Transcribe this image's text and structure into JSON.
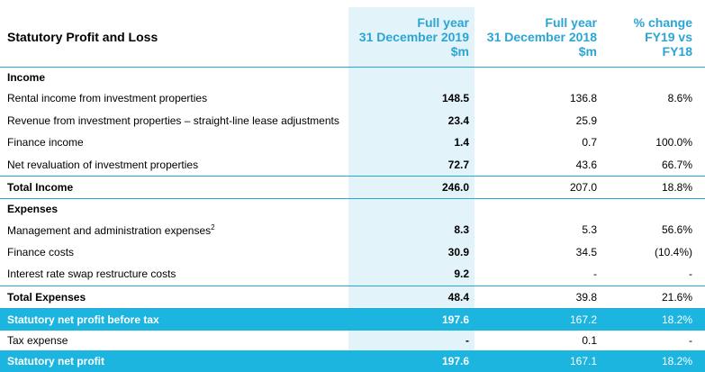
{
  "header": {
    "title": "Statutory Profit and Loss",
    "col_fy19": [
      "Full year",
      "31 December 2019",
      "$m"
    ],
    "col_fy18": [
      "Full year",
      "31 December 2018",
      "$m"
    ],
    "col_pct": [
      "% change",
      "FY19 vs",
      "FY18"
    ]
  },
  "colors": {
    "accent": "#2aa5d4",
    "highlight_row": "#1cb5e0",
    "fy19_band": "#e3f3fa"
  },
  "income": {
    "heading": "Income",
    "rows": [
      {
        "label": "Rental income from investment properties",
        "fy19": "148.5",
        "fy18": "136.8",
        "pct": "8.6%"
      },
      {
        "label": "Revenue from investment properties – straight-line lease adjustments",
        "fy19": "23.4",
        "fy18": "25.9",
        "pct": ""
      },
      {
        "label": "Finance income",
        "fy19": "1.4",
        "fy18": "0.7",
        "pct": "100.0%"
      },
      {
        "label": "Net revaluation of investment properties",
        "fy19": "72.7",
        "fy18": "43.6",
        "pct": "66.7%"
      }
    ],
    "total": {
      "label": "Total Income",
      "fy19": "246.0",
      "fy18": "207.0",
      "pct": "18.8%"
    }
  },
  "expenses": {
    "heading": "Expenses",
    "rows": [
      {
        "label": "Management and administration expenses",
        "sup": "2",
        "fy19": "8.3",
        "fy18": "5.3",
        "pct": "56.6%"
      },
      {
        "label": "Finance costs",
        "fy19": "30.9",
        "fy18": "34.5",
        "pct": "(10.4%)"
      },
      {
        "label": "Interest rate swap restructure costs",
        "fy19": "9.2",
        "fy18": "-",
        "pct": "-"
      }
    ],
    "total": {
      "label": "Total Expenses",
      "fy19": "48.4",
      "fy18": "39.8",
      "pct": "21.6%"
    }
  },
  "profit_before_tax": {
    "label": "Statutory net profit before tax",
    "fy19": "197.6",
    "fy18": "167.2",
    "pct": "18.2%"
  },
  "tax": {
    "label": "Tax expense",
    "fy19": "-",
    "fy18": "0.1",
    "pct": "-"
  },
  "net_profit": {
    "label": "Statutory net profit",
    "fy19": "197.6",
    "fy18": "167.1",
    "pct": "18.2%"
  }
}
